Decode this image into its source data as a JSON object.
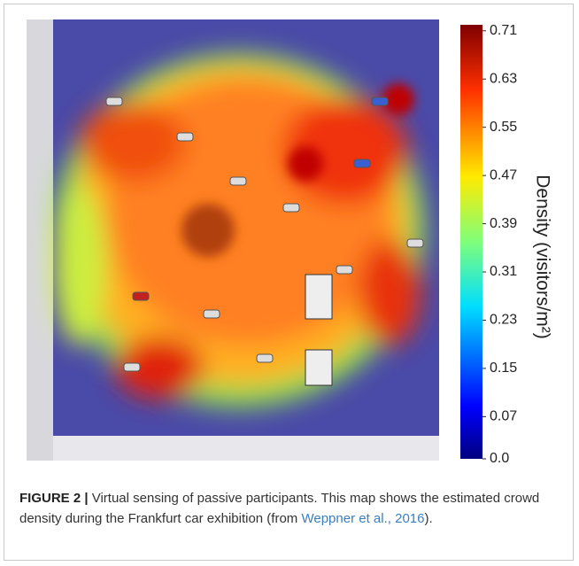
{
  "figure": {
    "colorbar": {
      "label": "Density (visitors/m²)",
      "lim": [
        0,
        0.72
      ],
      "ticks": [
        {
          "value": 0,
          "label": "0.0"
        },
        0.07,
        0.15,
        0.23,
        0.31,
        0.39,
        0.47,
        0.55,
        0.63,
        0.71
      ]
    },
    "caption": {
      "label": "FIGURE 2 |",
      "text": " Virtual sensing of passive participants. This map shows the estimated crowd density during the Frankfurt car exhibition (from ",
      "link": "Weppner et al., 2016",
      "end": ")."
    }
  }
}
